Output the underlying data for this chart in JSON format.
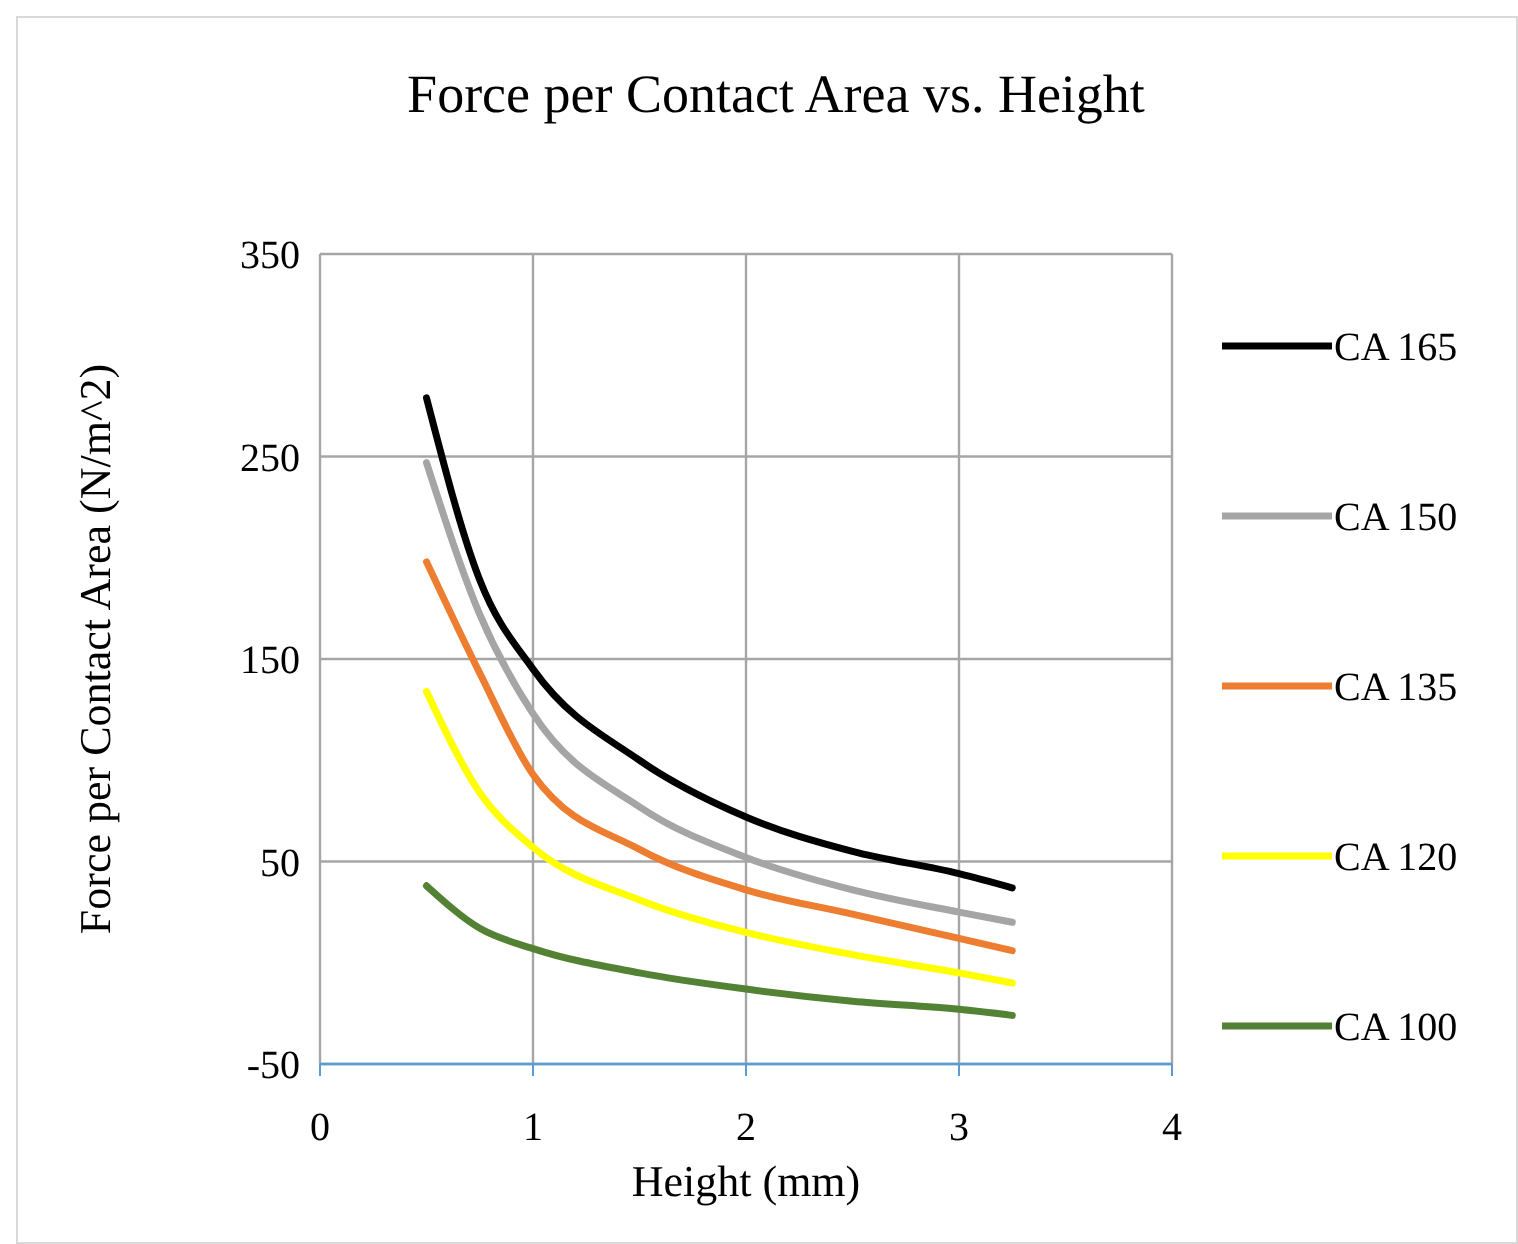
{
  "chart_data": {
    "type": "line",
    "title": "Force per Contact Area vs. Height",
    "xlabel": "Height (mm)",
    "ylabel": "Force per Contact Area (N/m^2)",
    "x": [
      0.5,
      0.75,
      1,
      1.5,
      2,
      2.5,
      3,
      3.25
    ],
    "series": [
      {
        "name": "CA 165",
        "color": "#000000",
        "values": [
          279,
          189,
          145,
          100,
          72,
          55,
          44,
          37
        ]
      },
      {
        "name": "CA 150",
        "color": "#a5a5a5",
        "values": [
          247,
          172,
          123,
          77,
          52,
          36,
          25,
          20
        ]
      },
      {
        "name": "CA 135",
        "color": "#ed7d31",
        "values": [
          198,
          143,
          93,
          56,
          36,
          24,
          12,
          6
        ]
      },
      {
        "name": "CA 120",
        "color": "#ffff00",
        "values": [
          134,
          84,
          57,
          31,
          15,
          4,
          -5,
          -10
        ]
      },
      {
        "name": "CA 100",
        "color": "#548235",
        "values": [
          38,
          17,
          7,
          -5,
          -13,
          -19,
          -23,
          -26
        ]
      }
    ],
    "xlim": [
      0,
      4
    ],
    "xticks": [
      0,
      1,
      2,
      3,
      4
    ],
    "ylim": [
      -50,
      350
    ],
    "yticks": [
      -50,
      50,
      150,
      250,
      350
    ],
    "grid": true,
    "legend": "right",
    "marker": "none",
    "line_style": "solid"
  }
}
